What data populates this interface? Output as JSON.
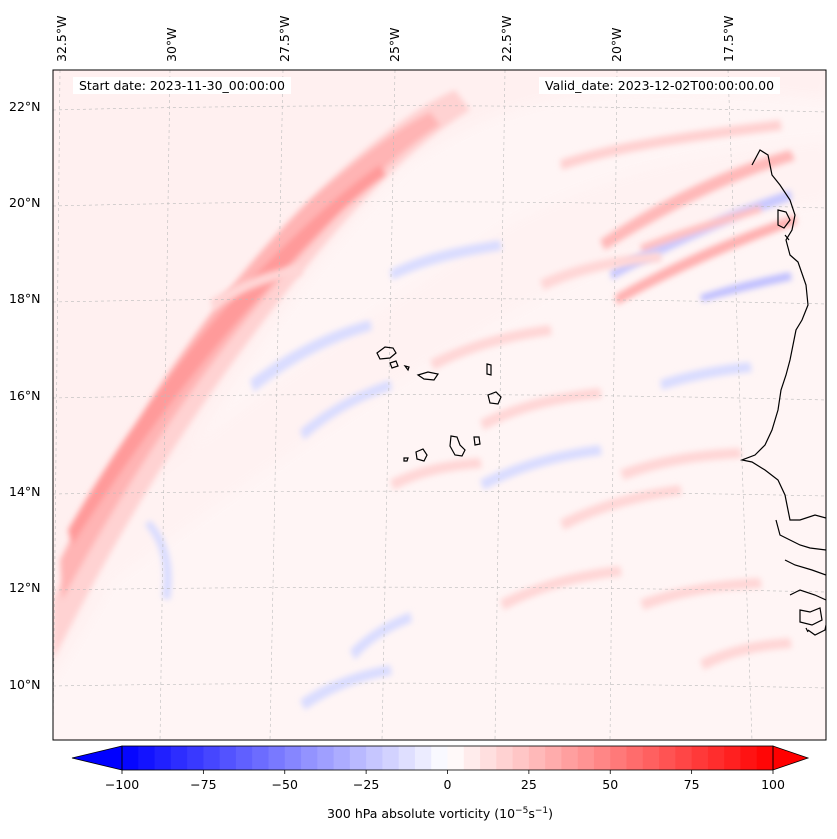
{
  "map": {
    "variable": "300 hPa absolute vorticity",
    "units_main": "(10",
    "units_exp1": "−5",
    "units_mid": "s",
    "units_exp2": "−1",
    "units_end": ")",
    "start_date": "Start date: 2023-11-30_00:00:00",
    "valid_date": "Valid_date: 2023-12-02T00:00:00.00",
    "lon_labels": [
      "32.5°W",
      "30°W",
      "27.5°W",
      "25°W",
      "22.5°W",
      "20°W",
      "17.5°W"
    ],
    "lat_labels": [
      "22°N",
      "20°N",
      "18°N",
      "16°N",
      "14°N",
      "12°N",
      "10°N"
    ],
    "gridlines": true
  },
  "colorbar": {
    "min": -100,
    "max": 100,
    "ticks": [
      "−100",
      "−75",
      "−50",
      "−25",
      "0",
      "25",
      "50",
      "75",
      "100"
    ],
    "extend": "both",
    "colormap": "bwr",
    "color_low": "#0000ff",
    "color_mid": "#ffffff",
    "color_high": "#ff0000"
  }
}
